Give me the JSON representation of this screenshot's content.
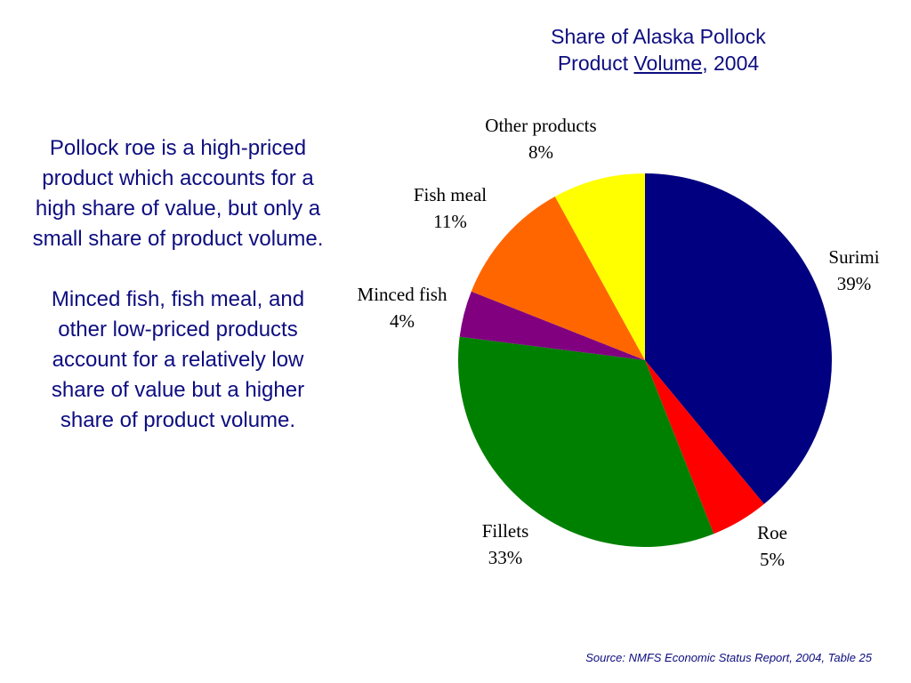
{
  "title": {
    "line1": "Share of Alaska Pollock",
    "line2_prefix": "Product ",
    "line2_underlined": "Volume",
    "line2_suffix": ", 2004"
  },
  "body": {
    "paragraph1": "Pollock roe is a high-priced product which accounts for a high share of value, but only a small share of product volume.",
    "paragraph2": "Minced fish, fish meal, and other low-priced products account for a relatively low share of value but a higher share of product volume."
  },
  "source": "Source:  NMFS Economic Status Report, 2004, Table 25",
  "chart_data": {
    "type": "pie",
    "title": "Share of Alaska Pollock Product Volume, 2004",
    "start": "12 o'clock, clockwise",
    "slices": [
      {
        "label": "Surimi",
        "value": 39,
        "value_label": "39%",
        "color": "#000080"
      },
      {
        "label": "Roe",
        "value": 5,
        "value_label": "5%",
        "color": "#ff0000"
      },
      {
        "label": "Fillets",
        "value": 33,
        "value_label": "33%",
        "color": "#008000"
      },
      {
        "label": "Minced fish",
        "value": 4,
        "value_label": "4%",
        "color": "#800080"
      },
      {
        "label": "Fish meal",
        "value": 11,
        "value_label": "11%",
        "color": "#ff6600"
      },
      {
        "label": "Other products",
        "value": 8,
        "value_label": "8%",
        "color": "#ffff00"
      }
    ]
  }
}
